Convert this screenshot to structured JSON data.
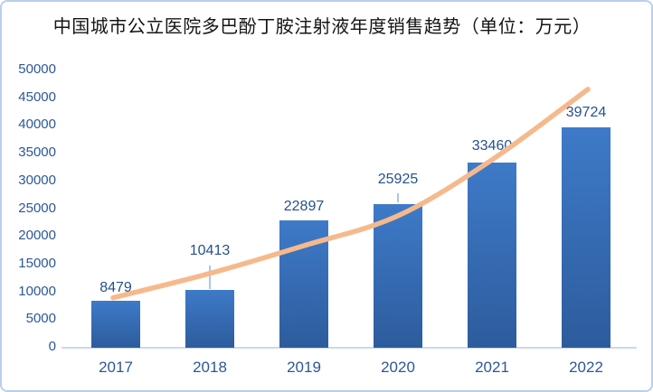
{
  "chart_data": {
    "type": "bar",
    "title": "中国城市公立医院多巴酚丁胺注射液年度销售趋势（单位：万元）",
    "categories": [
      "2017",
      "2018",
      "2019",
      "2020",
      "2021",
      "2022"
    ],
    "values": [
      8479,
      10413,
      22897,
      25925,
      33460,
      39724
    ],
    "data_labels_visible": true,
    "yticks": [
      0,
      5000,
      10000,
      15000,
      20000,
      25000,
      30000,
      35000,
      40000,
      45000,
      50000
    ],
    "ylim": [
      0,
      50000
    ],
    "grid": false,
    "legend": "none",
    "trendline": {
      "shape": "smooth",
      "estimated_values": [
        9000,
        13400,
        18400,
        23800,
        33900,
        46600
      ]
    }
  },
  "colors": {
    "bar_top": "#3E7AC8",
    "bar_bottom": "#2D5C9D",
    "trendline": "#F6B98C",
    "axis_line": "#CBD9ED",
    "tick_label": "#2B579A",
    "data_label": "#24518F",
    "title": "#141414",
    "border": "#B9CFEA",
    "leader_line": "#A9C7E8"
  }
}
